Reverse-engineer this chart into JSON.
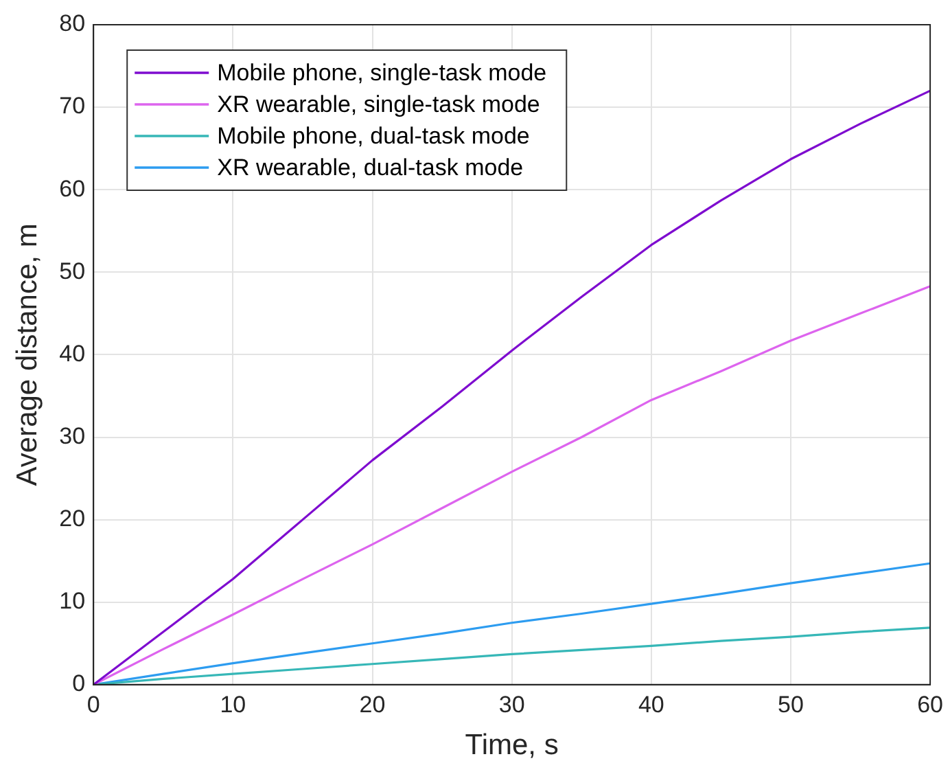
{
  "chart_data": {
    "type": "line",
    "xlabel": "Time, s",
    "ylabel": "Average distance, m",
    "x": [
      0,
      5,
      10,
      15,
      20,
      25,
      30,
      35,
      40,
      45,
      50,
      55,
      60
    ],
    "series": [
      {
        "name": "Mobile phone, single-task mode",
        "color": "#7e0ccf",
        "values": [
          0,
          6.4,
          12.8,
          20,
          27.2,
          33.7,
          40.5,
          47,
          53.3,
          58.7,
          63.7,
          68,
          72
        ]
      },
      {
        "name": "XR wearable, single-task mode",
        "color": "#dd64ee",
        "values": [
          0,
          4.3,
          8.5,
          12.8,
          17,
          21.4,
          25.8,
          30,
          34.5,
          38,
          41.7,
          45,
          48.3
        ]
      },
      {
        "name": "Mobile phone, dual-task mode",
        "color": "#36b7b7",
        "values": [
          0,
          0.7,
          1.3,
          1.9,
          2.5,
          3.1,
          3.7,
          4.2,
          4.7,
          5.3,
          5.8,
          6.4,
          6.9
        ]
      },
      {
        "name": "XR wearable, dual-task mode",
        "color": "#2d9cf0",
        "values": [
          0,
          1.3,
          2.6,
          3.8,
          5,
          6.2,
          7.5,
          8.6,
          9.8,
          11,
          12.3,
          13.5,
          14.7
        ]
      }
    ],
    "xlim": [
      0,
      60
    ],
    "xticks": [
      0,
      10,
      20,
      30,
      40,
      50,
      60
    ],
    "ylim": [
      0,
      80
    ],
    "yticks": [
      0,
      10,
      20,
      30,
      40,
      50,
      60,
      70,
      80
    ],
    "grid": true,
    "legend": "top left",
    "marker": "none",
    "line_style": "solid"
  }
}
